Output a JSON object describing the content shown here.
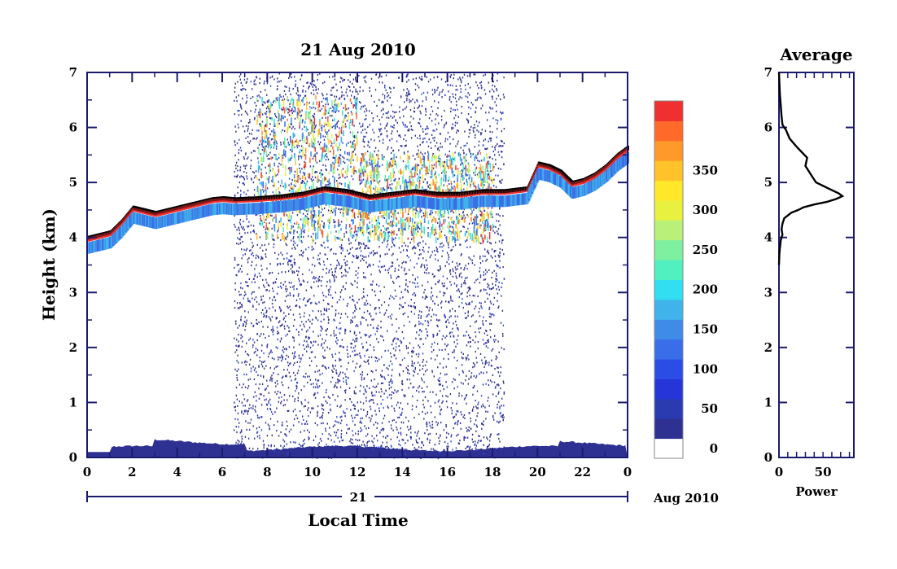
{
  "chart_data": [
    {
      "type": "heatmap",
      "title": "21 Aug 2010",
      "ylabel": "Height (km)",
      "xlabel": "Local Time",
      "ylim": [
        0,
        7
      ],
      "xlim": [
        0,
        24
      ],
      "y_ticks": [
        "0",
        "1",
        "2",
        "3",
        "4",
        "5",
        "6",
        "7"
      ],
      "x_ticks": [
        "0",
        "2",
        "4",
        "6",
        "8",
        "10",
        "12",
        "14",
        "16",
        "18",
        "20",
        "22",
        "0"
      ],
      "date_axis": {
        "day_label": "21",
        "month_label": "Aug 2010"
      },
      "colorbar": {
        "ticks": [
          "0",
          "50",
          "100",
          "150",
          "200",
          "250",
          "300",
          "350"
        ],
        "levels": [
          0,
          25,
          50,
          75,
          100,
          125,
          150,
          175,
          200,
          225,
          250,
          275,
          300,
          325,
          350,
          375
        ],
        "colors": [
          "#2e3192",
          "#2a3bb0",
          "#2535d8",
          "#2b4de6",
          "#3a6ee8",
          "#3f8be8",
          "#3fb3ea",
          "#31dff0",
          "#50f0c0",
          "#7ef0a0",
          "#b8f07a",
          "#e8f040",
          "#ffe82a",
          "#ffc22a",
          "#ff9a2a",
          "#ff6a2a",
          "#f03030"
        ]
      },
      "cloud_base_trace": {
        "x_hours": [
          0,
          0.5,
          1,
          1.5,
          2,
          2.5,
          3,
          3.5,
          4,
          4.5,
          5,
          5.5,
          6,
          6.5,
          7.5,
          8.5,
          9.5,
          10.5,
          11.5,
          12.5,
          13.5,
          14.5,
          15.5,
          16.5,
          17.5,
          18.5,
          19.5,
          20,
          20.5,
          21,
          21.5,
          22,
          22.5,
          23,
          23.5,
          24
        ],
        "y_km": [
          4.0,
          4.05,
          4.1,
          4.3,
          4.55,
          4.5,
          4.45,
          4.5,
          4.55,
          4.6,
          4.65,
          4.7,
          4.72,
          4.7,
          4.72,
          4.75,
          4.8,
          4.9,
          4.85,
          4.75,
          4.8,
          4.85,
          4.8,
          4.8,
          4.85,
          4.85,
          4.9,
          5.35,
          5.3,
          5.2,
          5.0,
          5.05,
          5.15,
          5.3,
          5.5,
          5.65
        ]
      },
      "noise_period_hours": [
        6.5,
        18.5
      ],
      "surface_layer_km": 0.3
    },
    {
      "type": "line",
      "title": "Average",
      "xlabel": "Power",
      "x_ticks": [
        "0",
        "50"
      ],
      "y_ticks": [
        "0",
        "1",
        "2",
        "3",
        "4",
        "5",
        "6",
        "7"
      ],
      "xlim": [
        0,
        85
      ],
      "ylim": [
        0,
        7
      ],
      "x": [
        0,
        0.5,
        1,
        2,
        3,
        4,
        3,
        4,
        6,
        14,
        22,
        28,
        40,
        55,
        65,
        72,
        68,
        55,
        42,
        38,
        34,
        30,
        32,
        26,
        20,
        12,
        8,
        4,
        3,
        2,
        1,
        0
      ],
      "y": [
        3.5,
        3.7,
        3.8,
        3.95,
        4.0,
        4.05,
        4.15,
        4.25,
        4.35,
        4.45,
        4.5,
        4.55,
        4.6,
        4.65,
        4.7,
        4.75,
        4.8,
        4.9,
        5.0,
        5.1,
        5.2,
        5.3,
        5.45,
        5.55,
        5.65,
        5.8,
        5.95,
        6.05,
        6.2,
        6.4,
        6.6,
        7.0
      ]
    }
  ]
}
